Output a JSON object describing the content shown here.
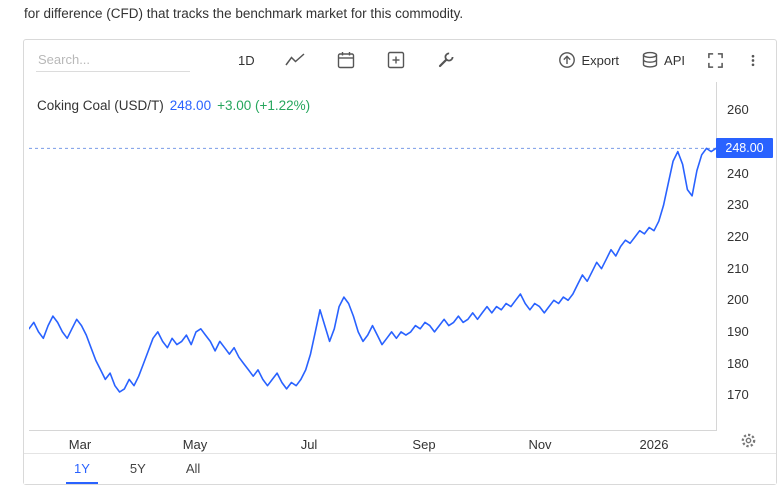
{
  "intro_text": "for difference (CFD) that tracks the benchmark market for this commodity.",
  "toolbar": {
    "search_placeholder": "Search...",
    "interval_label": "1D",
    "export_label": "Export",
    "api_label": "API",
    "icons": [
      "line-chart",
      "calendar",
      "add-panel",
      "tools-wrench",
      "export",
      "api-database",
      "fullscreen",
      "more-options"
    ]
  },
  "header": {
    "instrument": "Coking Coal (USD/T)",
    "price": "248.00",
    "change": "+3.00 (+1.22%)"
  },
  "price_tag": "248.00",
  "tabs": [
    {
      "label": "1Y",
      "active": true
    },
    {
      "label": "5Y",
      "active": false
    },
    {
      "label": "All",
      "active": false
    }
  ],
  "colors": {
    "series_line": "#2962ff",
    "price_tag_bg": "#2962ff",
    "price_text_blue": "#2962ff",
    "change_green": "#26a65d",
    "axis_text": "#333333",
    "border_gray": "#d9d9d9"
  },
  "chart_data": {
    "type": "line",
    "title": "Coking Coal (USD/T)",
    "series_name": "Coking Coal",
    "unit": "USD/T",
    "current_price": 248.0,
    "change_abs": 3.0,
    "change_pct": 1.22,
    "selected_range": "1Y",
    "grid": false,
    "legend": "none",
    "axis_side": "right",
    "y_range": [
      159,
      269
    ],
    "y_ticks": [
      260,
      250,
      240,
      230,
      220,
      210,
      200,
      190,
      180,
      170
    ],
    "x_ticks": [
      {
        "label": "Mar",
        "pos": 0.074
      },
      {
        "label": "May",
        "pos": 0.242
      },
      {
        "label": "Jul",
        "pos": 0.408
      },
      {
        "label": "Sep",
        "pos": 0.575
      },
      {
        "label": "Nov",
        "pos": 0.744
      },
      {
        "label": "2026",
        "pos": 0.91
      }
    ],
    "values": [
      191,
      193,
      190,
      188,
      192,
      195,
      193,
      190,
      188,
      191,
      194,
      192,
      189,
      185,
      181,
      178,
      175,
      177,
      173,
      171,
      172,
      175,
      173,
      176,
      180,
      184,
      188,
      190,
      187,
      185,
      188,
      186,
      187,
      189,
      186,
      190,
      191,
      189,
      187,
      184,
      187,
      185,
      183,
      185,
      182,
      180,
      178,
      176,
      178,
      175,
      173,
      175,
      177,
      174,
      172,
      174,
      173,
      175,
      178,
      183,
      190,
      197,
      192,
      187,
      191,
      198,
      201,
      199,
      195,
      190,
      187,
      189,
      192,
      189,
      186,
      188,
      190,
      188,
      190,
      189,
      190,
      192,
      191,
      193,
      192,
      190,
      192,
      194,
      192,
      193,
      195,
      193,
      194,
      196,
      194,
      196,
      198,
      196,
      198,
      197,
      199,
      198,
      200,
      202,
      199,
      197,
      199,
      198,
      196,
      198,
      200,
      199,
      201,
      200,
      202,
      205,
      208,
      206,
      209,
      212,
      210,
      213,
      216,
      214,
      217,
      219,
      218,
      220,
      222,
      221,
      223,
      222,
      225,
      230,
      237,
      244,
      247,
      243,
      235,
      233,
      241,
      246,
      248,
      247,
      248
    ]
  }
}
